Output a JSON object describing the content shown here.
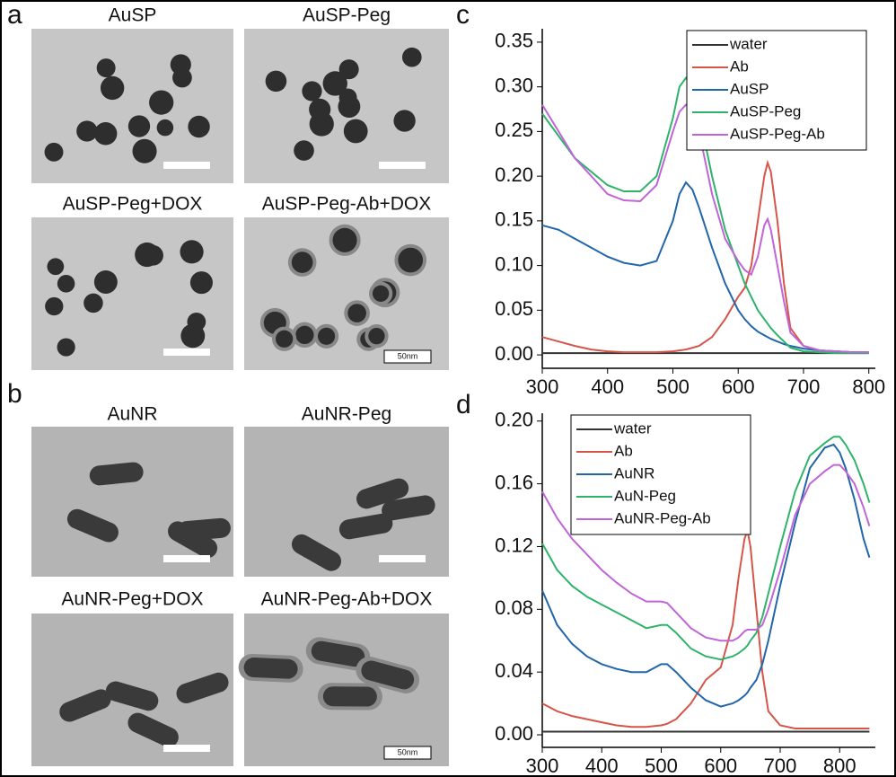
{
  "panel_labels": [
    "a",
    "b",
    "c",
    "d"
  ],
  "images": {
    "a": [
      "AuSP",
      "AuSP-Peg",
      "AuSP-Peg+DOX",
      "AuSP-Peg-Ab+DOX"
    ],
    "b": [
      "AuNR",
      "AuNR-Peg",
      "AuNR-Peg+DOX",
      "AuNR-Peg-Ab+DOX"
    ]
  },
  "scale_labels": {
    "a": "50nm",
    "b": "50nm"
  },
  "chart_data": [
    {
      "type": "line",
      "x": [
        300,
        325,
        350,
        375,
        400,
        425,
        450,
        475,
        500,
        510,
        520,
        530,
        540,
        560,
        580,
        600,
        610,
        620,
        630,
        640,
        645,
        650,
        660,
        670,
        680,
        700,
        725,
        750,
        775,
        800
      ],
      "series": [
        {
          "name": "water",
          "color": "#333333",
          "values": [
            0.002,
            0.002,
            0.002,
            0.002,
            0.002,
            0.002,
            0.002,
            0.002,
            0.002,
            0.002,
            0.002,
            0.002,
            0.002,
            0.002,
            0.002,
            0.002,
            0.002,
            0.002,
            0.002,
            0.002,
            0.002,
            0.002,
            0.002,
            0.002,
            0.002,
            0.002,
            0.002,
            0.002,
            0.002,
            0.002
          ]
        },
        {
          "name": "Ab",
          "color": "#d4564a",
          "values": [
            0.02,
            0.015,
            0.01,
            0.006,
            0.004,
            0.003,
            0.003,
            0.003,
            0.004,
            0.005,
            0.006,
            0.008,
            0.01,
            0.02,
            0.04,
            0.065,
            0.075,
            0.1,
            0.15,
            0.2,
            0.215,
            0.205,
            0.15,
            0.08,
            0.03,
            0.01,
            0.005,
            0.004,
            0.003,
            0.003
          ]
        },
        {
          "name": "AuSP",
          "color": "#2266aa",
          "values": [
            0.145,
            0.14,
            0.13,
            0.12,
            0.11,
            0.103,
            0.1,
            0.105,
            0.15,
            0.18,
            0.193,
            0.185,
            0.165,
            0.12,
            0.08,
            0.05,
            0.04,
            0.032,
            0.026,
            0.022,
            0.02,
            0.018,
            0.015,
            0.012,
            0.01,
            0.007,
            0.005,
            0.004,
            0.003,
            0.003
          ]
        },
        {
          "name": "AuSP-Peg",
          "color": "#2fb36b",
          "values": [
            0.27,
            0.245,
            0.22,
            0.205,
            0.19,
            0.183,
            0.183,
            0.2,
            0.265,
            0.3,
            0.31,
            0.3,
            0.27,
            0.2,
            0.14,
            0.1,
            0.08,
            0.065,
            0.05,
            0.04,
            0.035,
            0.03,
            0.022,
            0.015,
            0.008,
            0.004,
            0.003,
            0.002,
            0.002,
            0.002
          ]
        },
        {
          "name": "AuSP-Peg-Ab",
          "color": "#c064d8",
          "values": [
            0.28,
            0.25,
            0.22,
            0.2,
            0.18,
            0.173,
            0.172,
            0.19,
            0.25,
            0.272,
            0.28,
            0.272,
            0.25,
            0.18,
            0.13,
            0.105,
            0.095,
            0.09,
            0.11,
            0.145,
            0.152,
            0.14,
            0.1,
            0.06,
            0.025,
            0.01,
            0.005,
            0.004,
            0.003,
            0.003
          ]
        }
      ],
      "xlim": [
        300,
        810
      ],
      "xticks": [
        300,
        400,
        500,
        600,
        700,
        800
      ],
      "ylim": [
        -0.015,
        0.365
      ],
      "yticks": [
        {
          "value": 0,
          "label": "0.00"
        },
        0.05,
        {
          "value": 0.1,
          "label": "0.10"
        },
        0.15,
        {
          "value": 0.2,
          "label": "0.20"
        },
        0.25,
        {
          "value": 0.3,
          "label": "0.30"
        },
        0.35
      ],
      "legend": "upper right"
    },
    {
      "type": "line",
      "x": [
        300,
        325,
        350,
        375,
        400,
        425,
        450,
        475,
        500,
        510,
        525,
        550,
        575,
        600,
        620,
        630,
        640,
        645,
        650,
        660,
        670,
        680,
        700,
        725,
        750,
        775,
        790,
        800,
        810,
        825,
        840,
        850
      ],
      "series": [
        {
          "name": "water",
          "color": "#333333",
          "values": [
            0.002,
            0.002,
            0.002,
            0.002,
            0.002,
            0.002,
            0.002,
            0.002,
            0.002,
            0.002,
            0.002,
            0.002,
            0.002,
            0.002,
            0.002,
            0.002,
            0.002,
            0.002,
            0.002,
            0.002,
            0.002,
            0.002,
            0.002,
            0.002,
            0.002,
            0.002,
            0.002,
            0.002,
            0.002,
            0.002,
            0.002,
            0.002
          ]
        },
        {
          "name": "Ab",
          "color": "#d4564a",
          "values": [
            0.02,
            0.015,
            0.012,
            0.01,
            0.008,
            0.006,
            0.005,
            0.005,
            0.006,
            0.007,
            0.01,
            0.02,
            0.035,
            0.043,
            0.07,
            0.1,
            0.125,
            0.13,
            0.12,
            0.08,
            0.04,
            0.015,
            0.006,
            0.004,
            0.004,
            0.004,
            0.004,
            0.004,
            0.004,
            0.004,
            0.004,
            0.004
          ]
        },
        {
          "name": "AuNR",
          "color": "#2266aa",
          "values": [
            0.092,
            0.07,
            0.058,
            0.05,
            0.045,
            0.042,
            0.04,
            0.04,
            0.045,
            0.045,
            0.04,
            0.03,
            0.022,
            0.018,
            0.02,
            0.022,
            0.025,
            0.027,
            0.03,
            0.035,
            0.045,
            0.06,
            0.095,
            0.135,
            0.17,
            0.183,
            0.185,
            0.18,
            0.17,
            0.15,
            0.125,
            0.113
          ]
        },
        {
          "name": "AuN-Peg",
          "color": "#2fb36b",
          "values": [
            0.122,
            0.105,
            0.095,
            0.088,
            0.083,
            0.078,
            0.073,
            0.068,
            0.07,
            0.07,
            0.065,
            0.055,
            0.05,
            0.048,
            0.05,
            0.052,
            0.055,
            0.057,
            0.06,
            0.065,
            0.075,
            0.09,
            0.12,
            0.155,
            0.178,
            0.186,
            0.19,
            0.19,
            0.185,
            0.175,
            0.16,
            0.148
          ]
        },
        {
          "name": "AuNR-Peg-Ab",
          "color": "#c064d8",
          "values": [
            0.155,
            0.138,
            0.125,
            0.115,
            0.105,
            0.097,
            0.09,
            0.085,
            0.085,
            0.084,
            0.078,
            0.068,
            0.062,
            0.06,
            0.06,
            0.062,
            0.066,
            0.067,
            0.067,
            0.067,
            0.07,
            0.08,
            0.105,
            0.14,
            0.16,
            0.168,
            0.172,
            0.172,
            0.168,
            0.16,
            0.145,
            0.133
          ]
        }
      ],
      "xlim": [
        300,
        860
      ],
      "xticks": [
        300,
        400,
        500,
        600,
        700,
        800
      ],
      "ylim": [
        -0.008,
        0.205
      ],
      "yticks": [
        {
          "value": 0,
          "label": "0.00"
        },
        0.04,
        0.08,
        0.12,
        0.16,
        {
          "value": 0.2,
          "label": "0.20"
        }
      ],
      "legend": "upper left"
    }
  ]
}
